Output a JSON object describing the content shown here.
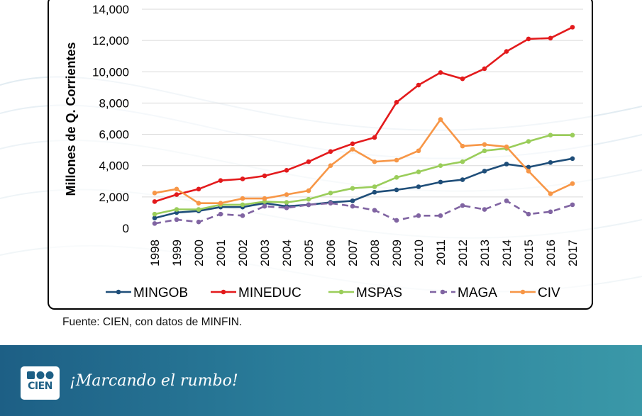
{
  "chart_data": {
    "type": "line",
    "title": "",
    "xlabel": "",
    "ylabel": "Millones de Q. Corrientes",
    "ylim": [
      0,
      14000
    ],
    "yticks": [
      0,
      2000,
      4000,
      6000,
      8000,
      10000,
      12000,
      14000
    ],
    "ytick_labels": [
      "0",
      "2,000",
      "4,000",
      "6,000",
      "8,000",
      "10,000",
      "12,000",
      "14,000"
    ],
    "grid": true,
    "legend_position": "bottom",
    "categories": [
      "1998",
      "1999",
      "2000",
      "2001",
      "2002",
      "2003",
      "2004",
      "2005",
      "2006",
      "2007",
      "2008",
      "2009",
      "2010",
      "2011",
      "2012",
      "2013",
      "2014",
      "2015",
      "2016",
      "2017"
    ],
    "series": [
      {
        "name": "MINGOB",
        "color": "#1f4e79",
        "dashed": false,
        "values": [
          650,
          1000,
          1100,
          1350,
          1350,
          1600,
          1400,
          1500,
          1650,
          1750,
          2300,
          2450,
          2650,
          2950,
          3100,
          3650,
          4100,
          3900,
          4200,
          4450
        ]
      },
      {
        "name": "MINEDUC",
        "color": "#e31a1c",
        "dashed": false,
        "values": [
          1700,
          2150,
          2500,
          3050,
          3150,
          3350,
          3700,
          4250,
          4900,
          5400,
          5800,
          8050,
          9150,
          9950,
          9550,
          10200,
          11300,
          12100,
          12150,
          12850
        ]
      },
      {
        "name": "MSPAS",
        "color": "#9acd5a",
        "dashed": false,
        "values": [
          900,
          1200,
          1200,
          1500,
          1500,
          1700,
          1650,
          1850,
          2250,
          2550,
          2650,
          3250,
          3600,
          4000,
          4250,
          4950,
          5100,
          5550,
          5950,
          5950
        ]
      },
      {
        "name": "MAGA",
        "color": "#8064a2",
        "dashed": true,
        "values": [
          300,
          550,
          400,
          900,
          800,
          1400,
          1300,
          1500,
          1600,
          1400,
          1150,
          500,
          800,
          800,
          1450,
          1200,
          1750,
          900,
          1050,
          1500
        ]
      },
      {
        "name": "CIV",
        "color": "#f79646",
        "dashed": false,
        "values": [
          2250,
          2500,
          1600,
          1600,
          1900,
          1900,
          2150,
          2400,
          4000,
          5050,
          4250,
          4350,
          4950,
          6950,
          5250,
          5350,
          5200,
          3650,
          2200,
          2850
        ]
      }
    ]
  },
  "source_note": "Fuente: CIEN, con datos de MINFIN.",
  "footer": {
    "logo_text": "CIEN",
    "slogan": "¡Marcando el rumbo!"
  }
}
